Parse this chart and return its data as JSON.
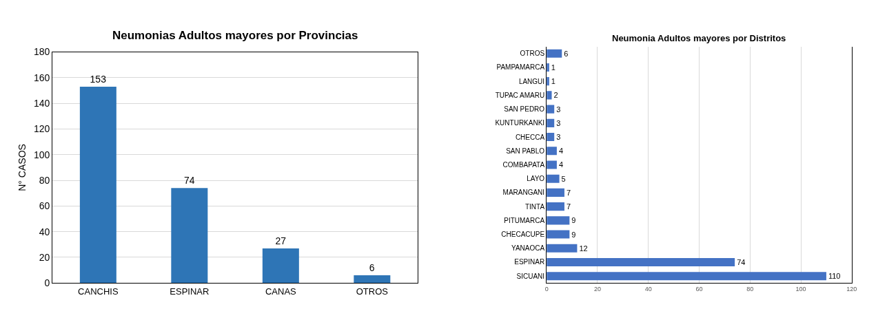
{
  "chart_data": [
    {
      "type": "bar",
      "title": "Neumonias Adultos mayores por Provincias",
      "ylabel": "N° CASOS",
      "categories": [
        "CANCHIS",
        "ESPINAR",
        "CANAS",
        "OTROS"
      ],
      "values": [
        153,
        74,
        27,
        6
      ],
      "color": "#2e75b6",
      "ylim": [
        0,
        180
      ],
      "yticks": [
        0,
        20,
        40,
        60,
        80,
        100,
        120,
        140,
        160,
        180
      ],
      "grid": "y",
      "data_labels": true
    },
    {
      "type": "bar",
      "title": "Neumonia Adultos mayores por Distritos",
      "orientation": "horizontal",
      "categories": [
        "OTROS",
        "PAMPAMARCA",
        "LANGUI",
        "TUPAC AMARU",
        "SAN PEDRO",
        "KUNTURKANKI",
        "CHECCA",
        "SAN PABLO",
        "COMBAPATA",
        "LAYO",
        "MARANGANI",
        "TINTA",
        "PITUMARCA",
        "CHECACUPE",
        "YANAOCA",
        "ESPINAR",
        "SICUANI"
      ],
      "values": [
        6,
        1,
        1,
        2,
        3,
        3,
        3,
        4,
        4,
        5,
        7,
        7,
        9,
        9,
        12,
        74,
        110
      ],
      "color": "#4472c4",
      "xlim": [
        0,
        120
      ],
      "xticks": [
        0,
        20,
        40,
        60,
        80,
        100,
        120
      ],
      "grid": "x",
      "data_labels": true
    }
  ]
}
